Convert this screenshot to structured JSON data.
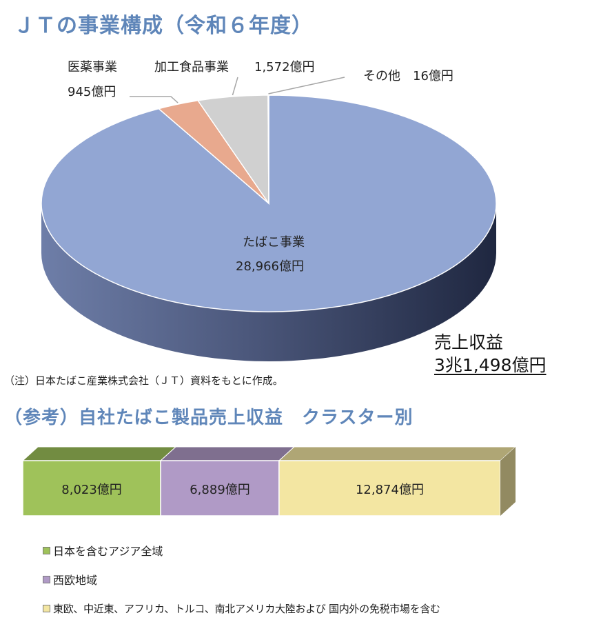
{
  "title": "ＪＴの事業構成（令和６年度）",
  "total": {
    "label": "売上収益",
    "value": "3兆1,498億円"
  },
  "note": "（注）日本たばこ産業株式会社（ＪＴ）資料をもとに作成。",
  "chart_data": [
    {
      "type": "pie",
      "slices": [
        {
          "name": "たばこ事業",
          "value": 28966,
          "value_label": "28,966億円",
          "color": "#92a6d3"
        },
        {
          "name": "医薬事業",
          "value": 945,
          "value_label": "945億円",
          "color": "#e8a98e"
        },
        {
          "name": "加工食品事業",
          "value": 1572,
          "value_label": "1,572億円",
          "color": "#d0d0d0"
        },
        {
          "name": "その他",
          "value": 16,
          "value_label": "16億円",
          "color": "#eeeeee"
        }
      ],
      "legend": "none"
    },
    {
      "type": "bar",
      "orientation": "horizontal-stacked",
      "title": "（参考）自社たばこ製品売上収益　クラスター別",
      "series": [
        {
          "name": "日本を含むアジア全域",
          "value": 8023,
          "value_label": "8,023億円",
          "color": "#9fc25a"
        },
        {
          "name": "西欧地域",
          "value": 6889,
          "value_label": "6,889億円",
          "color": "#b09ac6"
        },
        {
          "name": "東欧、中近東、アフリカ、トルコ、南北アメリカ大陸および 国内外の免税市場を含む",
          "value": 12874,
          "value_label": "12,874億円",
          "color": "#f3e6a2"
        }
      ],
      "legend": "bottom"
    }
  ]
}
